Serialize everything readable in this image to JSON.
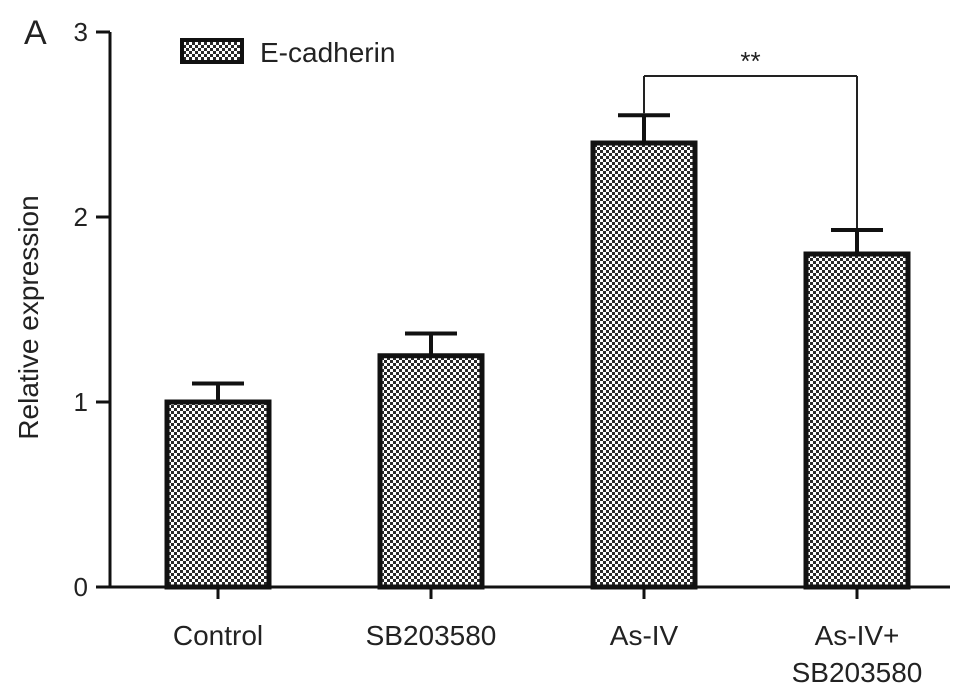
{
  "chart_data": {
    "type": "bar",
    "panel_label": "A",
    "title": "",
    "xlabel": "",
    "ylabel": "Relative expression",
    "ylim": [
      0,
      3
    ],
    "yticks": [
      0,
      1,
      2,
      3
    ],
    "categories": [
      {
        "lines": [
          "Control"
        ]
      },
      {
        "lines": [
          "SB203580"
        ]
      },
      {
        "lines": [
          "As-IV"
        ]
      },
      {
        "lines": [
          "As-IV+",
          "SB203580"
        ]
      }
    ],
    "series": [
      {
        "name": "E-cadherin",
        "values": [
          1.0,
          1.25,
          2.4,
          1.8
        ],
        "errors": [
          0.1,
          0.12,
          0.15,
          0.13
        ],
        "pattern": "dotted-checker",
        "color": "#000000"
      }
    ],
    "legend": {
      "placement": "top-left"
    },
    "annotations": [
      {
        "text": "**",
        "from_category": 2,
        "to_category": 3
      }
    ],
    "grid": false
  }
}
